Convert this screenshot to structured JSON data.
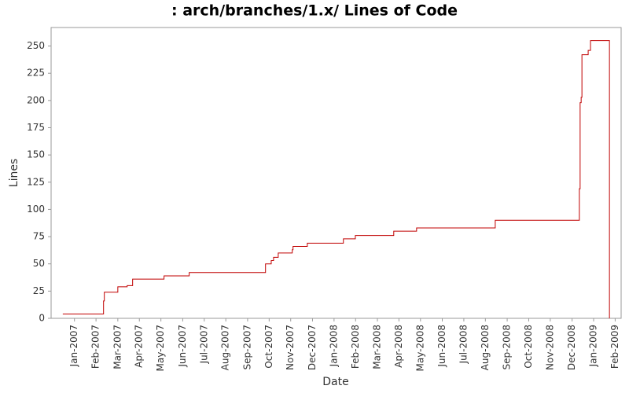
{
  "chart_data": {
    "type": "step",
    "title": ": arch/branches/1.x/ Lines of Code",
    "x_label": "Date",
    "y_label": "Lines",
    "x": [
      2006.955,
      2007.112,
      2007.115,
      2007.167,
      2007.203,
      2007.224,
      2007.345,
      2007.442,
      2007.736,
      2007.758,
      2007.767,
      2007.785,
      2007.839,
      2007.842,
      2007.897,
      2008.036,
      2008.082,
      2008.23,
      2008.318,
      2008.621,
      2008.945,
      2008.948,
      2008.952,
      2008.955,
      2008.979,
      2008.988,
      2009.055,
      2009.061
    ],
    "series": [
      {
        "name": "Lines",
        "color": "#c00000",
        "values": [
          4,
          16,
          24,
          29,
          30,
          36,
          39,
          42,
          50,
          53,
          56,
          60,
          63,
          66,
          69,
          73,
          76,
          80,
          83,
          90,
          119,
          198,
          203,
          242,
          246,
          255,
          255,
          0
        ]
      }
    ],
    "xlim": [
      2006.91,
      2009.106
    ],
    "xticks": [
      {
        "value": 2007.0,
        "label": "Jan-2007"
      },
      {
        "value": 2007.083,
        "label": "Feb-2007"
      },
      {
        "value": 2007.167,
        "label": "Mar-2007"
      },
      {
        "value": 2007.25,
        "label": "Apr-2007"
      },
      {
        "value": 2007.333,
        "label": "May-2007"
      },
      {
        "value": 2007.417,
        "label": "Jun-2007"
      },
      {
        "value": 2007.5,
        "label": "Jul-2007"
      },
      {
        "value": 2007.583,
        "label": "Aug-2007"
      },
      {
        "value": 2007.667,
        "label": "Sep-2007"
      },
      {
        "value": 2007.75,
        "label": "Oct-2007"
      },
      {
        "value": 2007.833,
        "label": "Nov-2007"
      },
      {
        "value": 2007.917,
        "label": "Dec-2007"
      },
      {
        "value": 2008.0,
        "label": "Jan-2008"
      },
      {
        "value": 2008.083,
        "label": "Feb-2008"
      },
      {
        "value": 2008.167,
        "label": "Mar-2008"
      },
      {
        "value": 2008.25,
        "label": "Apr-2008"
      },
      {
        "value": 2008.333,
        "label": "May-2008"
      },
      {
        "value": 2008.417,
        "label": "Jun-2008"
      },
      {
        "value": 2008.5,
        "label": "Jul-2008"
      },
      {
        "value": 2008.583,
        "label": "Aug-2008"
      },
      {
        "value": 2008.667,
        "label": "Sep-2008"
      },
      {
        "value": 2008.75,
        "label": "Oct-2008"
      },
      {
        "value": 2008.833,
        "label": "Nov-2008"
      },
      {
        "value": 2008.917,
        "label": "Dec-2008"
      },
      {
        "value": 2009.0,
        "label": "Jan-2009"
      },
      {
        "value": 2009.083,
        "label": "Feb-2009"
      }
    ],
    "ylim": [
      0,
      267
    ],
    "yticks": [
      0,
      25,
      50,
      75,
      100,
      125,
      150,
      175,
      200,
      225,
      250
    ],
    "grid": false
  }
}
